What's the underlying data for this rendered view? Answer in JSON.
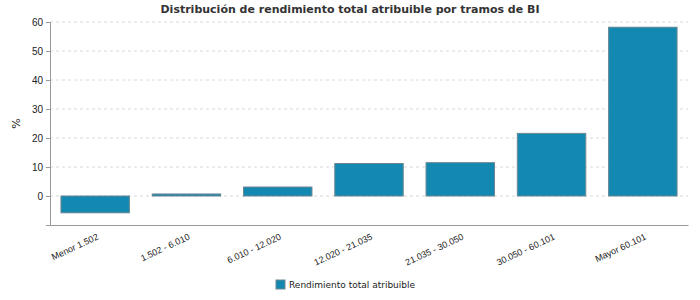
{
  "chart_data": {
    "type": "bar",
    "title": "Distribución de rendimiento total atribuible por tramos de BI",
    "y_label": "%",
    "categories": [
      "Menor 1.502",
      "1.502 - 6.010",
      "6.010 - 12.020",
      "12.020 - 21.035",
      "21.035 - 30.050",
      "30.050 - 60.101",
      "Mayor 60.101"
    ],
    "series": [
      {
        "name": "Rendimiento total atribuible",
        "color": "#1389b1",
        "values": [
          -5.8,
          0.7,
          3.1,
          11.2,
          11.5,
          21.6,
          58.2
        ]
      }
    ],
    "ylim": [
      -10,
      60
    ],
    "yticks": [
      0,
      10,
      20,
      30,
      40,
      50,
      60
    ],
    "grid": true,
    "legend": "bottom"
  }
}
